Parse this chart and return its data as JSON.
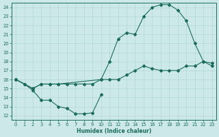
{
  "xlabel": "Humidex (Indice chaleur)",
  "bg_color": "#cce8e8",
  "grid_color": "#b0d8d8",
  "line_color": "#1a6b5a",
  "xlim": [
    -0.5,
    23.5
  ],
  "ylim": [
    11.5,
    24.5
  ],
  "xticks": [
    0,
    1,
    2,
    3,
    4,
    5,
    6,
    7,
    8,
    9,
    10,
    11,
    12,
    13,
    14,
    15,
    16,
    17,
    18,
    19,
    20,
    21,
    22,
    23
  ],
  "yticks": [
    12,
    13,
    14,
    15,
    16,
    17,
    18,
    19,
    20,
    21,
    22,
    23,
    24
  ],
  "curve_top_x": [
    0,
    2,
    3,
    4,
    5,
    10,
    11,
    12,
    13,
    14,
    15,
    16,
    17,
    18,
    19,
    20,
    21,
    22,
    23
  ],
  "curve_top_y": [
    16,
    15,
    15.5,
    15.5,
    15.5,
    16,
    18,
    20.5,
    21.2,
    21.0,
    23.0,
    24.0,
    24.3,
    24.3,
    23.7,
    22.5,
    20.0,
    18.0,
    17.8
  ],
  "curve_mid_x": [
    0,
    1,
    2,
    3,
    4,
    5,
    6,
    7,
    8,
    9,
    10,
    11,
    12,
    13,
    14,
    15,
    16,
    17,
    18,
    19,
    20,
    21,
    22,
    23
  ],
  "curve_mid_y": [
    16,
    15.5,
    15.0,
    15.5,
    15.5,
    15.5,
    15.5,
    15.5,
    15.5,
    15.5,
    16.0,
    16.0,
    16.0,
    16.5,
    17.0,
    17.5,
    17.2,
    17.0,
    17.0,
    17.0,
    17.5,
    17.5,
    18.0,
    17.5
  ],
  "curve_bot_x": [
    0,
    1,
    2,
    3,
    4,
    5,
    6,
    7,
    8,
    9,
    10
  ],
  "curve_bot_y": [
    16,
    15.5,
    14.8,
    13.7,
    13.7,
    13.0,
    12.8,
    12.2,
    12.2,
    12.3,
    14.3
  ]
}
